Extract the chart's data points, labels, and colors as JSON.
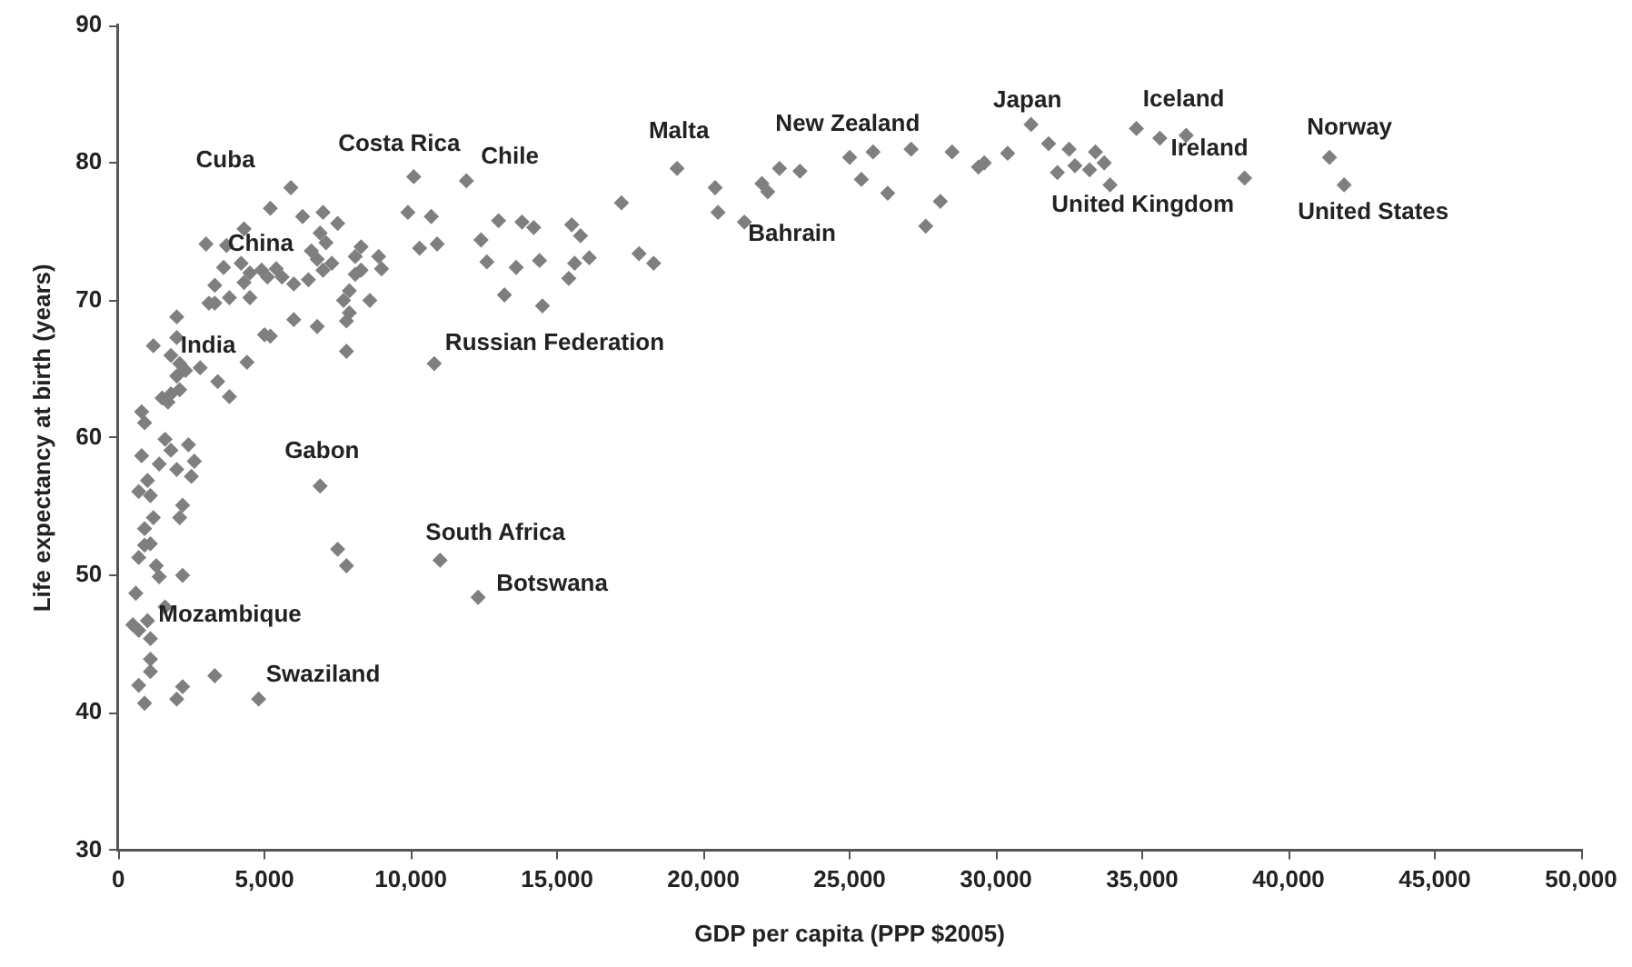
{
  "chart_data": {
    "type": "scatter",
    "xlabel": "GDP per capita (PPP $2005)",
    "ylabel": "Life expectancy at birth (years)",
    "xlim": [
      0,
      50000
    ],
    "ylim": [
      30,
      90
    ],
    "xticks": [
      0,
      {
        "value": 5000,
        "label": "5,000"
      },
      {
        "value": 10000,
        "label": "10,000"
      },
      {
        "value": 15000,
        "label": "15,000"
      },
      {
        "value": 20000,
        "label": "20,000"
      },
      {
        "value": 25000,
        "label": "25,000"
      },
      {
        "value": 30000,
        "label": "30,000"
      },
      {
        "value": 35000,
        "label": "35,000"
      },
      {
        "value": 40000,
        "label": "40,000"
      },
      {
        "value": 45000,
        "label": "45,000"
      },
      {
        "value": 50000,
        "label": "50,000"
      }
    ],
    "yticks": [
      30,
      40,
      50,
      60,
      70,
      80,
      90
    ],
    "grid": false,
    "legend": false,
    "marker": "diamond",
    "series": [
      {
        "color": "#7f7f7f",
        "x": [
          5900,
          5200,
          6300,
          7000,
          7500,
          4300,
          3000,
          3700,
          6900,
          7100,
          6600,
          6800,
          7300,
          7000,
          8300,
          8100,
          8900,
          9000,
          8300,
          8100,
          3600,
          4200,
          4500,
          4900,
          5100,
          5400,
          5600,
          6000,
          6500,
          3300,
          4300,
          4500,
          3800,
          3300,
          3100,
          7700,
          7900,
          8600,
          7900,
          7800,
          6000,
          6800,
          2000,
          2000,
          1200,
          5000,
          5200,
          7800,
          1800,
          2100,
          2800,
          2300,
          2000,
          4400,
          3400,
          2100,
          1800,
          1500,
          1700,
          3800,
          800,
          900,
          1600,
          2400,
          800,
          1800,
          1400,
          2000,
          2600,
          2500,
          1000,
          700,
          1100,
          2200,
          2100,
          1200,
          900,
          1100,
          900,
          700,
          1300,
          1400,
          2200,
          6900,
          7500,
          7800,
          11000,
          600,
          1600,
          500,
          700,
          1000,
          1100,
          1100,
          1100,
          700,
          900,
          2200,
          2000,
          3300,
          4800,
          10100,
          11900,
          9900,
          10700,
          10300,
          10900,
          10800,
          13000,
          13800,
          14200,
          12400,
          12600,
          13600,
          14400,
          13200,
          14500,
          15500,
          15800,
          16100,
          15600,
          15400,
          17200,
          17800,
          18300,
          19100,
          12300,
          20400,
          20500,
          21400,
          22000,
          22200,
          22600,
          23300,
          25000,
          25800,
          25400,
          26300,
          27100,
          28500,
          28100,
          27600,
          29400,
          29600,
          30400,
          31200,
          31800,
          32500,
          33400,
          32100,
          32700,
          33200,
          33700,
          33900,
          34800,
          35600,
          36500,
          38500,
          41400,
          41900
        ],
        "values": [
          78.2,
          76.7,
          76.1,
          76.4,
          75.6,
          75.2,
          74.1,
          74.0,
          74.9,
          74.2,
          73.6,
          73.0,
          72.7,
          72.2,
          73.9,
          73.2,
          73.2,
          72.3,
          72.2,
          71.9,
          72.4,
          72.7,
          72.0,
          72.2,
          71.7,
          72.3,
          71.7,
          71.2,
          71.5,
          71.1,
          71.3,
          70.2,
          70.2,
          69.8,
          69.8,
          70.0,
          70.7,
          70.0,
          69.1,
          68.5,
          68.6,
          68.1,
          68.8,
          67.3,
          66.7,
          67.5,
          67.4,
          66.3,
          66.0,
          65.4,
          65.1,
          64.9,
          64.5,
          65.5,
          64.1,
          63.5,
          63.2,
          62.9,
          62.6,
          63.0,
          61.9,
          61.1,
          59.9,
          59.5,
          58.7,
          59.1,
          58.1,
          57.7,
          58.3,
          57.2,
          56.9,
          56.1,
          55.8,
          55.1,
          54.2,
          54.2,
          53.4,
          52.3,
          52.2,
          51.3,
          50.7,
          49.9,
          50.0,
          56.5,
          51.9,
          50.7,
          51.1,
          48.7,
          47.7,
          46.4,
          46.0,
          46.7,
          45.4,
          43.9,
          43.0,
          42.0,
          40.7,
          41.9,
          41.0,
          42.7,
          41.0,
          79.0,
          78.7,
          76.4,
          76.1,
          73.8,
          74.1,
          65.4,
          75.8,
          75.7,
          75.3,
          74.4,
          72.8,
          72.4,
          72.9,
          70.4,
          69.6,
          75.5,
          74.7,
          73.1,
          72.7,
          71.6,
          77.1,
          73.4,
          72.7,
          79.6,
          48.4,
          78.2,
          76.4,
          75.7,
          78.5,
          77.9,
          79.6,
          79.4,
          80.4,
          80.8,
          78.8,
          77.8,
          81.0,
          80.8,
          77.2,
          75.4,
          79.7,
          80.0,
          80.7,
          82.8,
          81.4,
          81.0,
          80.8,
          79.3,
          79.8,
          79.5,
          80.0,
          78.4,
          82.5,
          81.8,
          82.0,
          78.9,
          80.4,
          78.4
        ]
      }
    ],
    "annotations": [
      {
        "text": "Cuba",
        "x": 5900,
        "y": 78.2
      },
      {
        "text": "China",
        "x": 3000,
        "y": 74.1
      },
      {
        "text": "India",
        "x": 1200,
        "y": 66.7
      },
      {
        "text": "Gabon",
        "x": 6900,
        "y": 56.5
      },
      {
        "text": "Mozambique",
        "x": 1000,
        "y": 46.7
      },
      {
        "text": "Swaziland",
        "x": 4800,
        "y": 41.0
      },
      {
        "text": "South Africa",
        "x": 11000,
        "y": 51.1
      },
      {
        "text": "Botswana",
        "x": 12300,
        "y": 48.4
      },
      {
        "text": "Russian Federation",
        "x": 10800,
        "y": 65.4
      },
      {
        "text": "Costa Rica",
        "x": 10100,
        "y": 79.0
      },
      {
        "text": "Chile",
        "x": 11900,
        "y": 78.7
      },
      {
        "text": "Malta",
        "x": 19100,
        "y": 79.6
      },
      {
        "text": "New Zealand",
        "x": 25800,
        "y": 80.8
      },
      {
        "text": "Bahrain",
        "x": 21400,
        "y": 75.7
      },
      {
        "text": "Japan",
        "x": 31200,
        "y": 82.8
      },
      {
        "text": "Iceland",
        "x": 34800,
        "y": 82.5
      },
      {
        "text": "Ireland",
        "x": 38500,
        "y": 78.9
      },
      {
        "text": "Norway",
        "x": 41400,
        "y": 80.4
      },
      {
        "text": "United Kingdom",
        "x": 33900,
        "y": 78.4
      },
      {
        "text": "United States",
        "x": 41900,
        "y": 78.4
      }
    ]
  }
}
